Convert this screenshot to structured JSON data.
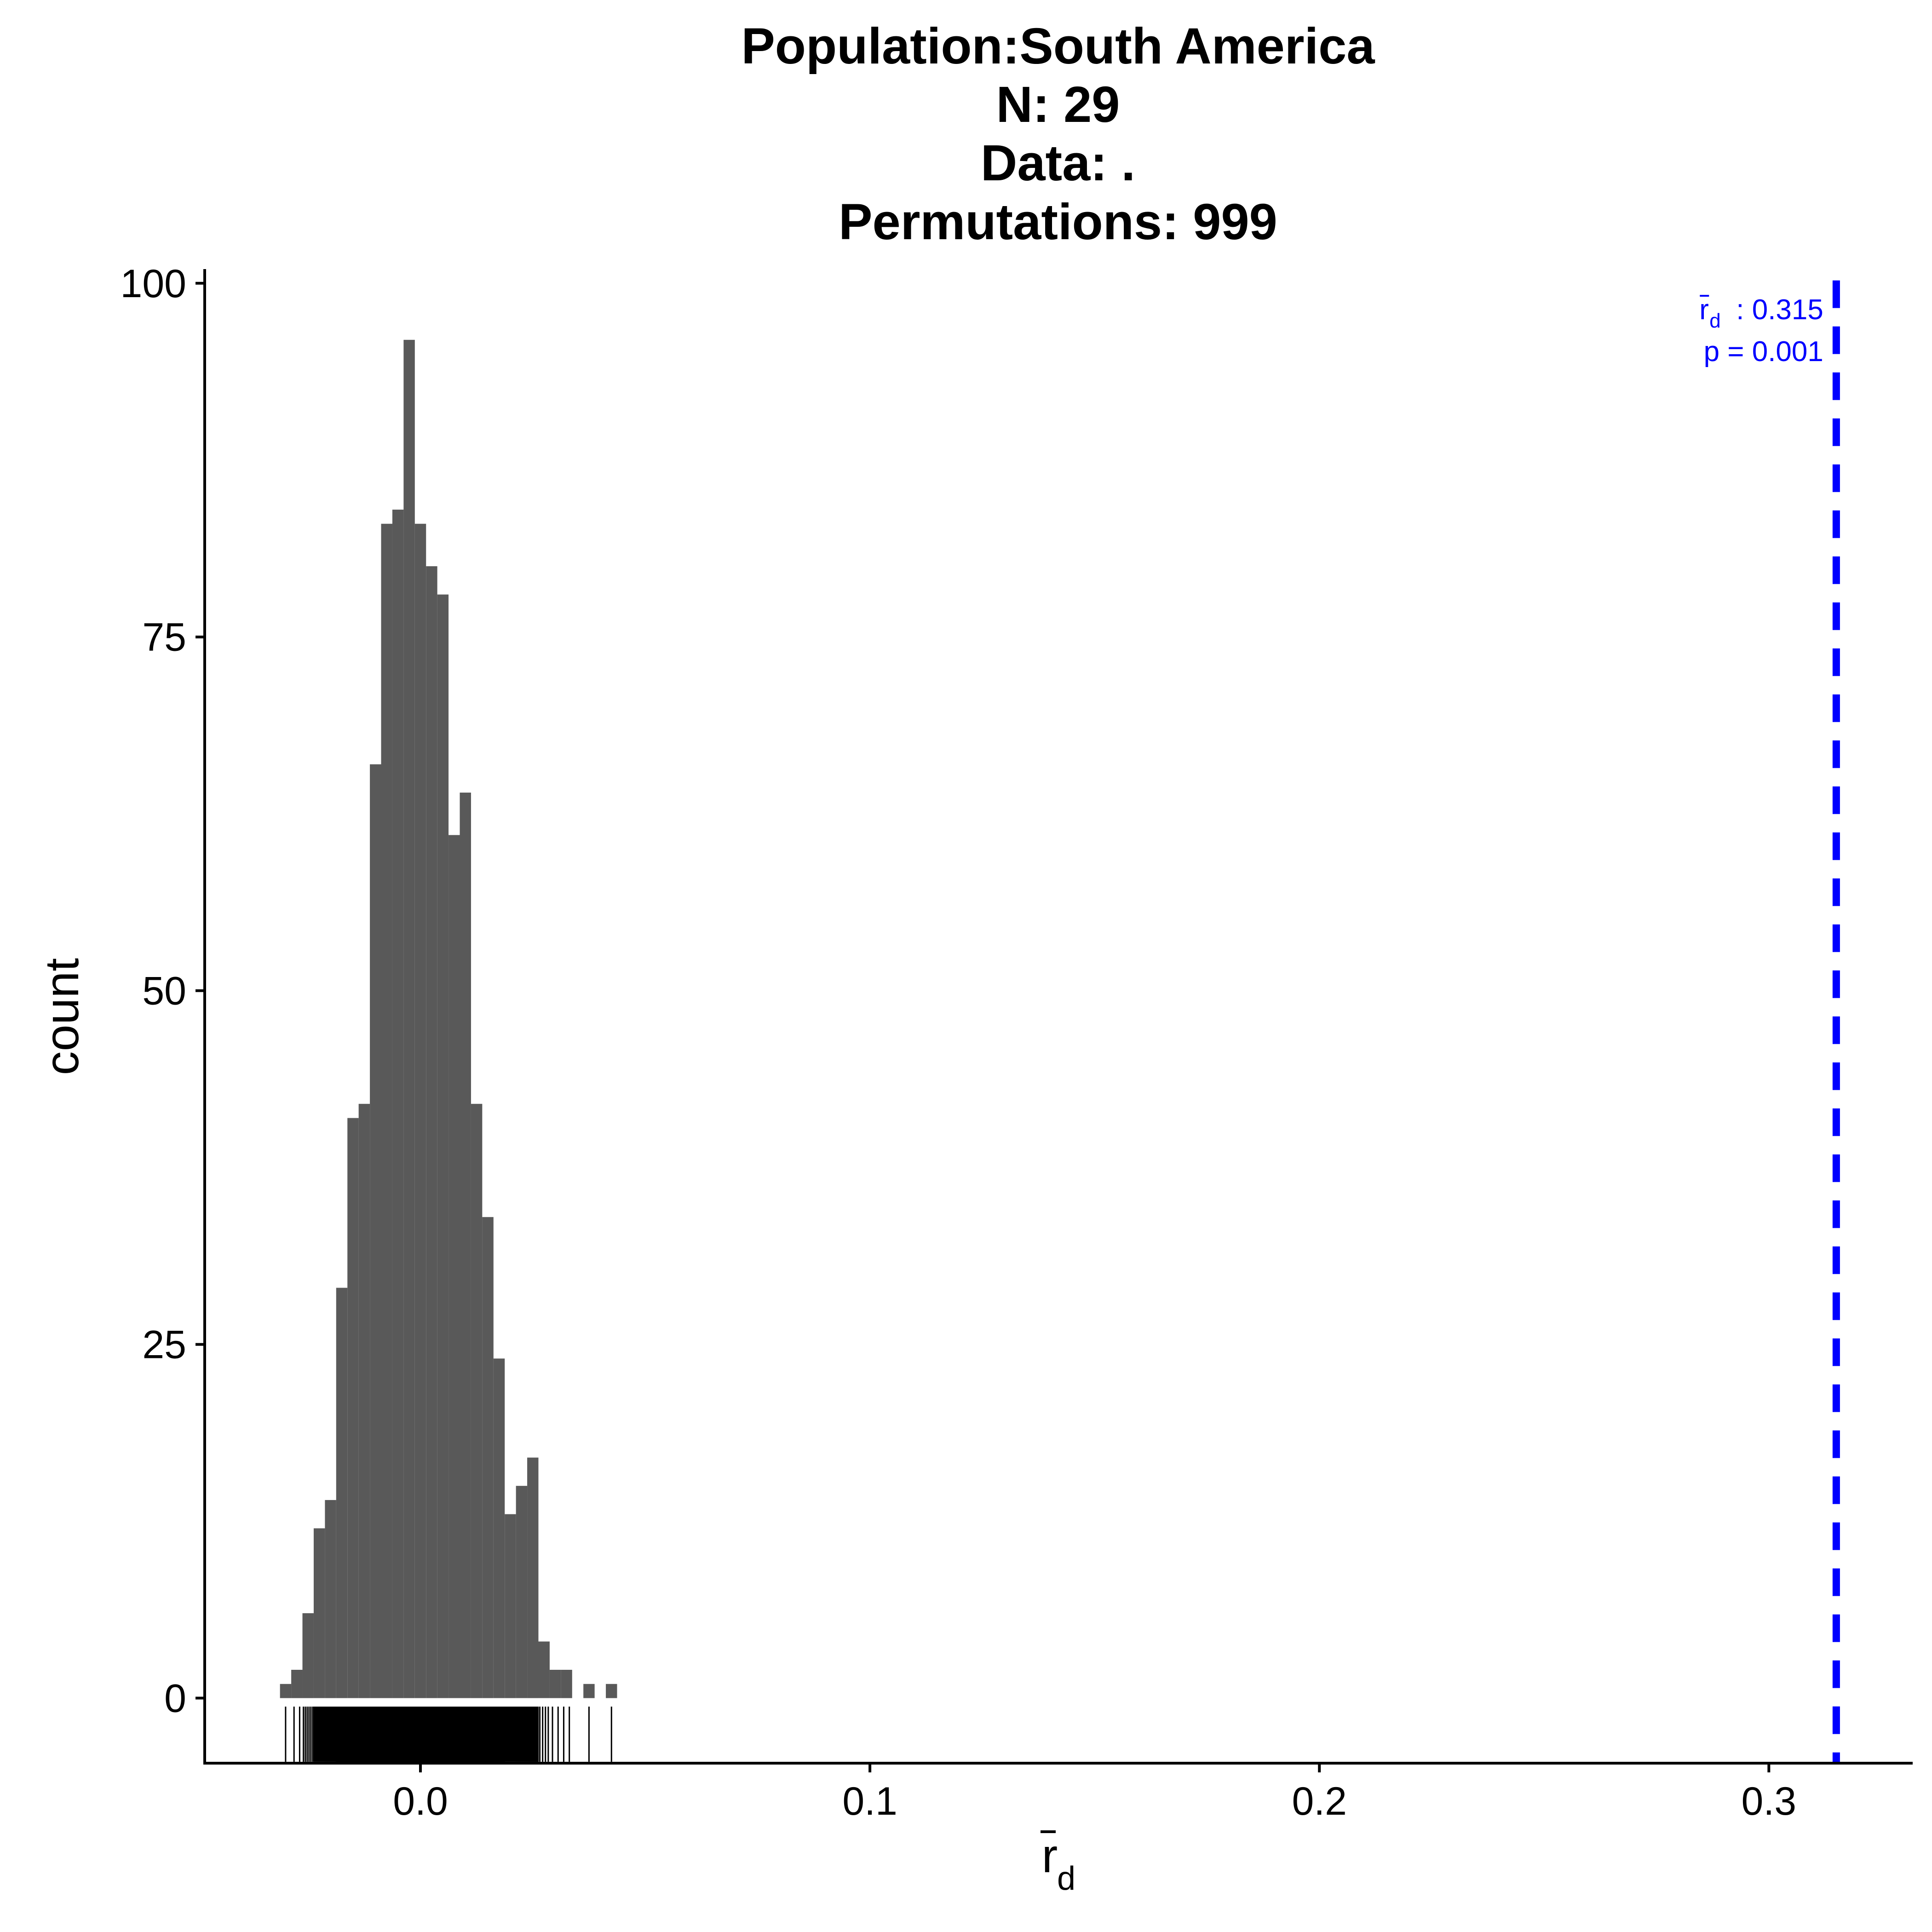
{
  "chart_data": {
    "type": "bar",
    "title_lines": [
      "Population:South America",
      "N: 29",
      "Data: .",
      "Permutations: 999"
    ],
    "xlabel": "r",
    "xlabel_subscript": "d",
    "ylabel": "count",
    "xlim": [
      -0.048,
      0.332
    ],
    "ylim": [
      -4.6,
      101
    ],
    "x_ticks": [
      0.0,
      0.1,
      0.2,
      0.3
    ],
    "x_tick_labels": [
      "0.0",
      "0.1",
      "0.2",
      "0.3"
    ],
    "y_ticks": [
      0,
      25,
      50,
      75,
      100
    ],
    "y_tick_labels": [
      "0",
      "25",
      "50",
      "75",
      "100"
    ],
    "grid": false,
    "legend": "none",
    "bar_color": "#595959",
    "bin_width": 0.0025,
    "bins": [
      {
        "x": -0.03,
        "count": 1
      },
      {
        "x": -0.0275,
        "count": 2
      },
      {
        "x": -0.025,
        "count": 6
      },
      {
        "x": -0.0225,
        "count": 12
      },
      {
        "x": -0.02,
        "count": 14
      },
      {
        "x": -0.0175,
        "count": 29
      },
      {
        "x": -0.015,
        "count": 41
      },
      {
        "x": -0.0125,
        "count": 42
      },
      {
        "x": -0.01,
        "count": 66
      },
      {
        "x": -0.0075,
        "count": 83
      },
      {
        "x": -0.005,
        "count": 84
      },
      {
        "x": -0.0025,
        "count": 96
      },
      {
        "x": 0.0,
        "count": 83
      },
      {
        "x": 0.0025,
        "count": 80
      },
      {
        "x": 0.005,
        "count": 78
      },
      {
        "x": 0.0075,
        "count": 61
      },
      {
        "x": 0.01,
        "count": 64
      },
      {
        "x": 0.0125,
        "count": 42
      },
      {
        "x": 0.015,
        "count": 34
      },
      {
        "x": 0.0175,
        "count": 24
      },
      {
        "x": 0.02,
        "count": 13
      },
      {
        "x": 0.0225,
        "count": 15
      },
      {
        "x": 0.025,
        "count": 17
      },
      {
        "x": 0.0275,
        "count": 4
      },
      {
        "x": 0.03,
        "count": 2
      },
      {
        "x": 0.0325,
        "count": 2
      },
      {
        "x": 0.035,
        "count": 0
      },
      {
        "x": 0.0375,
        "count": 1
      },
      {
        "x": 0.04,
        "count": 0
      },
      {
        "x": 0.0425,
        "count": 1
      }
    ],
    "rug_color": "#000000",
    "observed": {
      "value": 0.315,
      "color": "#0000ff",
      "label_symbol": "r",
      "label_subscript": "d",
      "label_value": ": 0.315",
      "p_label": "p = 0.001"
    }
  }
}
